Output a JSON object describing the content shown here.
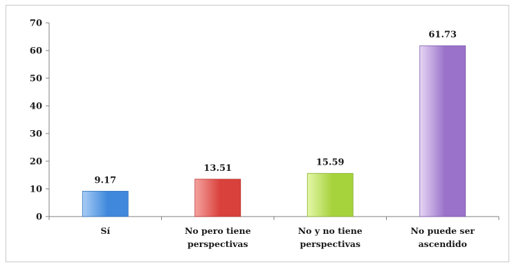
{
  "chart_data": {
    "type": "bar",
    "categories": [
      "Sí",
      "No pero tiene perspectivas",
      "No y no tiene perspectivas",
      "No puede ser ascendido"
    ],
    "category_lines": [
      [
        "Sí"
      ],
      [
        "No pero tiene",
        "perspectivas"
      ],
      [
        "No y no tiene",
        "perspectivas"
      ],
      [
        "No puede ser",
        "ascendido"
      ]
    ],
    "values": [
      9.17,
      13.51,
      15.59,
      61.73
    ],
    "value_labels": [
      "9.17",
      "13.51",
      "15.59",
      "61.73"
    ],
    "ylim": [
      0,
      70
    ],
    "yticks": [
      "0",
      "10",
      "20",
      "30",
      "40",
      "50",
      "60",
      "70"
    ],
    "grid": false,
    "legend": "none",
    "colors": [
      {
        "light": "#a9cdf5",
        "dark": "#3f88dc",
        "edge": "#2f6fb8"
      },
      {
        "light": "#f5a3a0",
        "dark": "#d9413c",
        "edge": "#b8302c"
      },
      {
        "light": "#e4f7a8",
        "dark": "#a6d23c",
        "edge": "#86ad2a"
      },
      {
        "light": "#e6d6f5",
        "dark": "#9a72c9",
        "edge": "#7b55aa"
      }
    ]
  }
}
